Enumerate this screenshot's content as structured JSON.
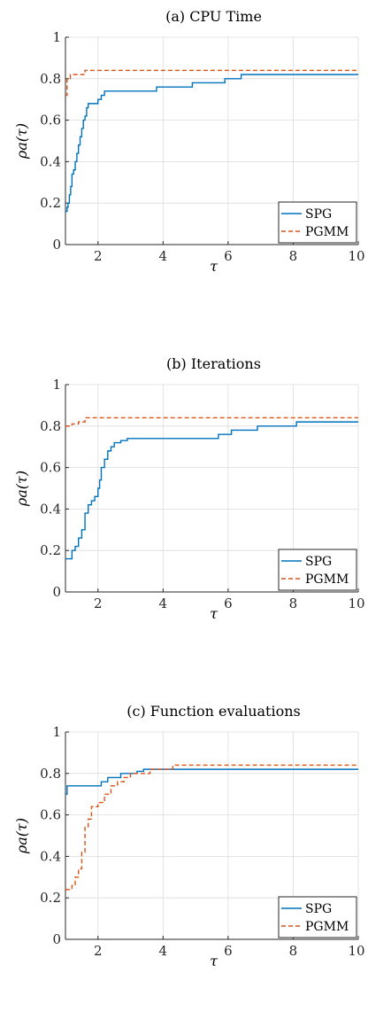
{
  "chart_data": [
    {
      "type": "line",
      "title": "(a) CPU Time",
      "xlabel": "τ",
      "ylabel": "ρa(τ)",
      "xlim": [
        1,
        10
      ],
      "ylim": [
        0,
        1
      ],
      "xticks": [
        "2",
        "4",
        "6",
        "8",
        "10"
      ],
      "yticks": [
        "0",
        "0.2",
        "0.4",
        "0.6",
        "0.8",
        "1"
      ],
      "grid": true,
      "legend_position": "bottom-right",
      "series": [
        {
          "name": "SPG",
          "color": "#0072BD",
          "style": "solid",
          "x": [
            1,
            1.05,
            1.08,
            1.12,
            1.16,
            1.2,
            1.25,
            1.3,
            1.35,
            1.4,
            1.45,
            1.5,
            1.55,
            1.6,
            1.65,
            1.7,
            1.75,
            1.85,
            2.0,
            2.1,
            2.2,
            3.8,
            4.9,
            5.9,
            6.4,
            10
          ],
          "y": [
            0.16,
            0.18,
            0.2,
            0.24,
            0.28,
            0.34,
            0.36,
            0.4,
            0.44,
            0.48,
            0.52,
            0.56,
            0.6,
            0.62,
            0.66,
            0.68,
            0.68,
            0.68,
            0.7,
            0.72,
            0.74,
            0.76,
            0.78,
            0.8,
            0.82,
            0.82
          ]
        },
        {
          "name": "PGMM",
          "color": "#D95319",
          "style": "dashed",
          "x": [
            1,
            1.05,
            1.15,
            1.6,
            10
          ],
          "y": [
            0.72,
            0.8,
            0.82,
            0.84,
            0.84
          ]
        }
      ]
    },
    {
      "type": "line",
      "title": "(b) Iterations",
      "xlabel": "τ",
      "ylabel": "ρa(τ)",
      "xlim": [
        1,
        10
      ],
      "ylim": [
        0,
        1
      ],
      "xticks": [
        "2",
        "4",
        "6",
        "8",
        "10"
      ],
      "yticks": [
        "0",
        "0.2",
        "0.4",
        "0.6",
        "0.8",
        "1"
      ],
      "grid": true,
      "legend_position": "bottom-right",
      "series": [
        {
          "name": "SPG",
          "color": "#0072BD",
          "style": "solid",
          "x": [
            1,
            1.2,
            1.3,
            1.4,
            1.5,
            1.6,
            1.7,
            1.8,
            1.9,
            2.0,
            2.05,
            2.1,
            2.2,
            2.3,
            2.4,
            2.5,
            2.7,
            2.9,
            5.7,
            6.1,
            6.9,
            8.1,
            10
          ],
          "y": [
            0.16,
            0.2,
            0.22,
            0.26,
            0.3,
            0.38,
            0.42,
            0.44,
            0.46,
            0.5,
            0.54,
            0.6,
            0.64,
            0.68,
            0.7,
            0.72,
            0.73,
            0.74,
            0.76,
            0.78,
            0.8,
            0.82,
            0.82
          ]
        },
        {
          "name": "PGMM",
          "color": "#D95319",
          "style": "dashed",
          "x": [
            1,
            1.2,
            1.4,
            1.6,
            10
          ],
          "y": [
            0.8,
            0.81,
            0.82,
            0.84,
            0.84
          ]
        }
      ]
    },
    {
      "type": "line",
      "title": "(c) Function evaluations",
      "xlabel": "τ",
      "ylabel": "ρa(τ)",
      "xlim": [
        1,
        10
      ],
      "ylim": [
        0,
        1
      ],
      "xticks": [
        "2",
        "4",
        "6",
        "8",
        "10"
      ],
      "yticks": [
        "0",
        "0.2",
        "0.4",
        "0.6",
        "0.8",
        "1"
      ],
      "grid": true,
      "legend_position": "bottom-right",
      "series": [
        {
          "name": "SPG",
          "color": "#0072BD",
          "style": "solid",
          "x": [
            1,
            1.05,
            2.1,
            2.3,
            2.5,
            2.7,
            3.2,
            3.4,
            10
          ],
          "y": [
            0.7,
            0.74,
            0.76,
            0.78,
            0.78,
            0.8,
            0.81,
            0.82,
            0.82
          ]
        },
        {
          "name": "PGMM",
          "color": "#D95319",
          "style": "dashed",
          "x": [
            1,
            1.2,
            1.3,
            1.4,
            1.5,
            1.6,
            1.7,
            1.8,
            2.0,
            2.2,
            2.4,
            2.6,
            2.8,
            3.0,
            3.3,
            3.6,
            4.3,
            10
          ],
          "y": [
            0.24,
            0.26,
            0.3,
            0.34,
            0.42,
            0.54,
            0.58,
            0.64,
            0.66,
            0.7,
            0.74,
            0.76,
            0.78,
            0.8,
            0.8,
            0.82,
            0.84,
            0.84
          ]
        }
      ]
    }
  ]
}
